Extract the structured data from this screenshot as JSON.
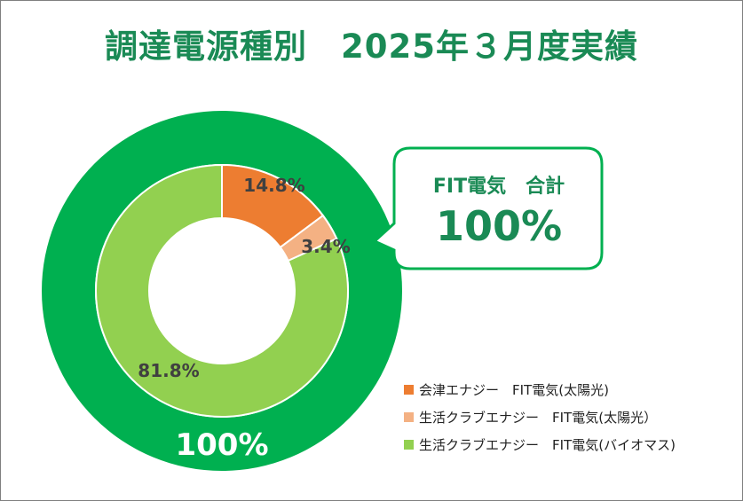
{
  "title": "調達電源種別　2025年３月度実績",
  "chart_data": {
    "type": "donut",
    "outer_ring": {
      "value": 100,
      "label": "100%",
      "color": "#00b050"
    },
    "inner_ring": {
      "slices": [
        {
          "label": "会津エナジー　FIT電気(太陽光)",
          "value": 14.8,
          "data_label": "14.8%",
          "color": "#ed7d31"
        },
        {
          "label": "生活クラブエナジー　FIT電気(太陽光）",
          "value": 3.4,
          "data_label": "3.4%",
          "color": "#f4b183"
        },
        {
          "label": "生活クラブエナジー　FIT電気(バイオマス)",
          "value": 81.8,
          "data_label": "81.8%",
          "color": "#92d050"
        }
      ]
    },
    "legend_position": "bottom-right"
  },
  "callout": {
    "title": "FIT電気　合計",
    "value": "100%"
  },
  "colors": {
    "accent": "#1a8a55",
    "callout_border": "#00b050"
  }
}
